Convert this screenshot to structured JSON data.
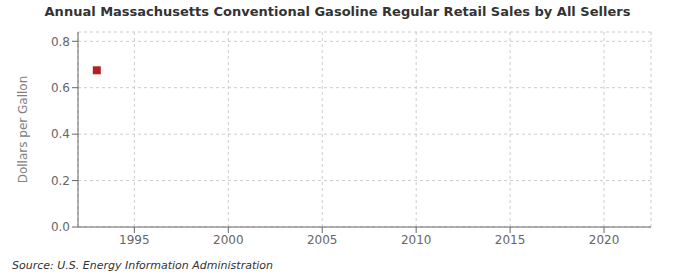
{
  "chart_data": {
    "type": "scatter",
    "title": "Annual Massachusetts Conventional Gasoline Regular Retail Sales by All Sellers",
    "y_label": "Dollars per Gallon",
    "source": "Source: U.S. Energy Information Administration",
    "x": [
      1993
    ],
    "values": [
      0.675
    ],
    "color": "#b22222",
    "marker": "square",
    "xlim": [
      1992,
      2022.5
    ],
    "xticks": [
      1995,
      2000,
      2005,
      2010,
      2015,
      2020
    ],
    "ylim": [
      0.0,
      0.84
    ],
    "yticks": [
      {
        "value": 0,
        "label": "0.0"
      },
      0.2,
      0.4,
      0.6,
      0.8
    ],
    "grid": true
  }
}
